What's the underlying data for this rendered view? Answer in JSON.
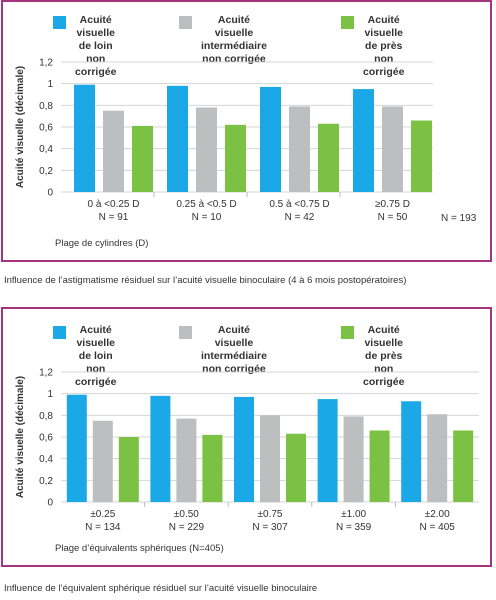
{
  "colors": {
    "frame": "#a4347e",
    "loin": "#1aa9e6",
    "intermediaire": "#bdbec0",
    "pres": "#7bc143"
  },
  "chart_data": [
    {
      "type": "bar",
      "ylabel": "Acuité visuelle (décimale)",
      "xlabel": "Plage de cylindres (D)",
      "ylim": [
        0,
        1.2
      ],
      "yticks": [
        "0",
        "0,2",
        "0,4",
        "0,6",
        "0,8",
        "1",
        "1,2"
      ],
      "grid": true,
      "legend": "top",
      "categories": [
        "0 à <0.25 D",
        "0.25 à <0.5 D",
        "0.5 à <0.75 D",
        "≥0.75 D"
      ],
      "category_counts": [
        "N = 91",
        "N = 10",
        "N = 42",
        "N = 50"
      ],
      "total": "N = 193",
      "series": [
        {
          "name": "Acuité visuelle\nde loin non corrigée",
          "color_key": "loin",
          "values": [
            0.99,
            0.98,
            0.97,
            0.95
          ]
        },
        {
          "name": "Acuité visuelle\nintermédiaire non corrigée",
          "color_key": "intermediaire",
          "values": [
            0.75,
            0.78,
            0.79,
            0.79
          ]
        },
        {
          "name": "Acuité visuelle\nde près non corrigée",
          "color_key": "pres",
          "values": [
            0.61,
            0.62,
            0.63,
            0.66
          ]
        }
      ],
      "caption": "Influence de l’astigmatisme résiduel sur l’acuité visuelle binoculaire (4 à 6 mois postopératoires)"
    },
    {
      "type": "bar",
      "ylabel": "Acuité visuelle (décimale)",
      "xlabel": "Plage d’équivalents sphériques (N=405)",
      "ylim": [
        0,
        1.2
      ],
      "yticks": [
        "0",
        "0,2",
        "0,4",
        "0,6",
        "0,8",
        "1",
        "1,2"
      ],
      "grid": true,
      "legend": "top",
      "categories": [
        "±0.25",
        "±0.50",
        "±0.75",
        "±1.00",
        "±2.00"
      ],
      "category_counts": [
        "N = 134",
        "N = 229",
        "N = 307",
        "N = 359",
        "N = 405"
      ],
      "series": [
        {
          "name": "Acuité visuelle\nde loin non corrigée",
          "color_key": "loin",
          "values": [
            0.99,
            0.98,
            0.97,
            0.95,
            0.93
          ]
        },
        {
          "name": "Acuité visuelle\nintermédiaire non corrigée",
          "color_key": "intermediaire",
          "values": [
            0.75,
            0.77,
            0.8,
            0.79,
            0.81
          ]
        },
        {
          "name": "Acuité visuelle\nde près non corrigée",
          "color_key": "pres",
          "values": [
            0.6,
            0.62,
            0.63,
            0.66,
            0.66
          ]
        }
      ],
      "caption": "Influence de l’équivalent sphérique résiduel sur l’acuité visuelle binoculaire"
    }
  ]
}
